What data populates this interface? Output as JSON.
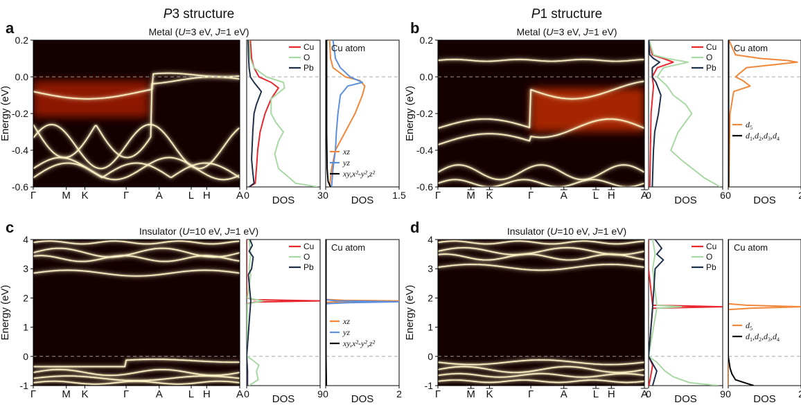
{
  "figure": {
    "panels": [
      {
        "letter": "a",
        "structure_prefix": "P",
        "structure_suffix": "3 structure",
        "condition": "Metal (U=3 eV, J=1 eV)"
      },
      {
        "letter": "b",
        "structure_prefix": "P",
        "structure_suffix": "1 structure",
        "condition": "Metal (U=3 eV, J=1 eV)"
      },
      {
        "letter": "c",
        "structure_prefix": "",
        "structure_suffix": "",
        "condition": "Insulator (U=10 eV, J=1 eV)"
      },
      {
        "letter": "d",
        "structure_prefix": "",
        "structure_suffix": "",
        "condition": "Insulator (U=10 eV, J=1 eV)"
      }
    ],
    "energy_label": "Energy (eV)",
    "dos_label": "DOS",
    "cu_atom_label": "Cu atom"
  },
  "colors": {
    "Cu": "#e8262e",
    "O": "#a8d8a3",
    "Pb": "#1f3049",
    "xz": "#f0873a",
    "yz": "#5b8fdc",
    "rest": "#000000",
    "d5": "#f0873a",
    "d_rest": "#000000",
    "map_bg": "#150000",
    "band": "#fff6c8"
  },
  "chart_data": [
    {
      "type": "heatmap",
      "panel": "a",
      "ylabel": "Energy (eV)",
      "ylim": [
        -0.6,
        0.2
      ],
      "yticks": [
        "0.2",
        "0.0",
        "-0.2",
        "-0.4",
        "-0.6"
      ],
      "kpath": [
        "Γ",
        "M",
        "K",
        "Γ",
        "A",
        "L",
        "H",
        "A"
      ],
      "kpath_overline": [
        false,
        false,
        false,
        false,
        false,
        false,
        false,
        false
      ],
      "fermi_level": 0.0,
      "dos_element": {
        "xlabel": "DOS",
        "xticks": [
          "0",
          "3"
        ],
        "xlim": [
          0,
          3
        ],
        "legend": [
          "Cu",
          "O",
          "Pb"
        ],
        "series": [
          {
            "name": "Cu",
            "energy": [
              -0.6,
              -0.58,
              -0.5,
              -0.4,
              -0.3,
              -0.2,
              -0.12,
              -0.06,
              -0.03,
              0.0,
              0.05,
              0.1,
              0.2
            ],
            "dos": [
              0.1,
              0.35,
              0.4,
              0.45,
              0.55,
              0.75,
              1.0,
              1.3,
              1.0,
              0.5,
              0.3,
              0.2,
              0.15
            ]
          },
          {
            "name": "O",
            "energy": [
              -0.6,
              -0.58,
              -0.5,
              -0.42,
              -0.35,
              -0.3,
              -0.25,
              -0.2,
              -0.12,
              -0.06,
              -0.03,
              0.0,
              0.05,
              0.1,
              0.2
            ],
            "dos": [
              2.9,
              2.0,
              1.3,
              1.15,
              1.3,
              1.5,
              1.2,
              1.0,
              1.0,
              1.55,
              1.5,
              0.8,
              0.3,
              0.15,
              0.1
            ]
          },
          {
            "name": "Pb",
            "energy": [
              -0.6,
              -0.58,
              -0.52,
              -0.45,
              -0.3,
              -0.2,
              -0.15,
              -0.08,
              -0.03,
              0.0,
              0.05,
              0.1,
              0.2
            ],
            "dos": [
              0.1,
              0.3,
              0.25,
              0.2,
              0.25,
              0.3,
              0.4,
              0.6,
              0.3,
              0.15,
              0.1,
              0.08,
              0.06
            ]
          }
        ]
      },
      "dos_orbital": {
        "xlabel": "DOS",
        "xticks": [
          "0",
          "1.5"
        ],
        "xlim": [
          0,
          1.5
        ],
        "title": "Cu atom",
        "legend": [
          "xz",
          "yz",
          "xy,x²-y²,z²"
        ],
        "series": [
          {
            "name": "xz",
            "energy": [
              -0.6,
              -0.5,
              -0.4,
              -0.3,
              -0.2,
              -0.1,
              -0.05,
              -0.02,
              0.0,
              0.05,
              0.1,
              0.2
            ],
            "dos": [
              0.08,
              0.12,
              0.2,
              0.4,
              0.6,
              0.75,
              0.8,
              0.7,
              0.4,
              0.15,
              0.1,
              0.08
            ]
          },
          {
            "name": "yz",
            "energy": [
              -0.6,
              -0.5,
              -0.4,
              -0.3,
              -0.2,
              -0.1,
              -0.05,
              -0.03,
              0.0,
              0.05,
              0.1,
              0.2
            ],
            "dos": [
              0.12,
              0.15,
              0.2,
              0.22,
              0.25,
              0.3,
              0.45,
              0.75,
              0.5,
              0.3,
              0.2,
              0.15
            ]
          },
          {
            "name": "xy,x²-y²,z²",
            "energy": [
              -0.6,
              -0.57,
              -0.5,
              -0.3,
              -0.1,
              0.0,
              0.2
            ],
            "dos": [
              0.1,
              0.05,
              0.03,
              0.02,
              0.02,
              0.02,
              0.02
            ]
          }
        ]
      }
    },
    {
      "type": "heatmap",
      "panel": "b",
      "ylabel": "Energy (eV)",
      "ylim": [
        -0.6,
        0.2
      ],
      "yticks": [
        "0.2",
        "0.0",
        "-0.2",
        "-0.4",
        "-0.6"
      ],
      "kpath": [
        "Γ",
        "M",
        "K",
        "Γ",
        "A",
        "L",
        "H",
        "A"
      ],
      "kpath_overline": [
        false,
        true,
        true,
        false,
        true,
        true,
        true,
        true
      ],
      "fermi_level": 0.0,
      "dos_element": {
        "xlabel": "DOS",
        "xticks": [
          "0",
          "6"
        ],
        "xlim": [
          0,
          6
        ],
        "legend": [
          "Cu",
          "O",
          "Pb"
        ],
        "series": [
          {
            "name": "Cu",
            "energy": [
              -0.6,
              -0.4,
              -0.2,
              -0.05,
              0.0,
              0.05,
              0.08,
              0.1,
              0.12,
              0.2
            ],
            "dos": [
              0.1,
              0.15,
              0.2,
              0.4,
              0.3,
              0.7,
              2.0,
              1.2,
              0.3,
              0.05
            ]
          },
          {
            "name": "O",
            "energy": [
              -0.6,
              -0.55,
              -0.45,
              -0.4,
              -0.3,
              -0.2,
              -0.15,
              -0.1,
              -0.05,
              0.0,
              0.05,
              0.08,
              0.1,
              0.12,
              0.2
            ],
            "dos": [
              5.8,
              4.5,
              2.6,
              1.8,
              2.4,
              3.5,
              3.0,
              2.0,
              1.5,
              0.7,
              1.2,
              3.2,
              1.5,
              0.4,
              0.05
            ]
          },
          {
            "name": "Pb",
            "energy": [
              -0.6,
              -0.4,
              -0.3,
              -0.2,
              -0.1,
              -0.03,
              0.0,
              0.05,
              0.08,
              0.1,
              0.12,
              0.2
            ],
            "dos": [
              0.3,
              0.4,
              0.5,
              0.8,
              1.0,
              0.6,
              0.3,
              0.3,
              0.9,
              0.4,
              0.1,
              0.02
            ]
          }
        ]
      },
      "dos_orbital": {
        "xlabel": "DOS",
        "xticks": [
          "0",
          "2"
        ],
        "xlim": [
          0,
          2
        ],
        "title": "Cu atom",
        "legend": [
          "d5",
          "d1,d2,d3,d4"
        ],
        "series": [
          {
            "name": "d5",
            "energy": [
              -0.6,
              -0.4,
              -0.2,
              -0.08,
              -0.05,
              -0.02,
              0.0,
              0.05,
              0.08,
              0.09,
              0.1,
              0.12,
              0.2
            ],
            "dos": [
              0.02,
              0.03,
              0.05,
              0.15,
              0.6,
              0.4,
              0.2,
              0.5,
              1.9,
              1.6,
              0.9,
              0.2,
              0.02
            ]
          },
          {
            "name": "d1,d2,d3,d4",
            "energy": [
              -0.6,
              -0.3,
              0.0,
              0.2
            ],
            "dos": [
              0.01,
              0.01,
              0.01,
              0.01
            ]
          }
        ]
      }
    },
    {
      "type": "heatmap",
      "panel": "c",
      "ylabel": "Energy (eV)",
      "ylim": [
        -1,
        4
      ],
      "yticks": [
        "4",
        "3",
        "2",
        "1",
        "0",
        "-1"
      ],
      "kpath": [
        "Γ",
        "M",
        "K",
        "Γ",
        "A",
        "L",
        "H",
        "A"
      ],
      "kpath_overline": [
        false,
        false,
        false,
        false,
        false,
        false,
        false,
        false
      ],
      "fermi_level": 0.0,
      "dos_element": {
        "xlabel": "DOS",
        "xticks": [
          "0",
          "9"
        ],
        "xlim": [
          0,
          9
        ],
        "legend": [
          "Cu",
          "O",
          "Pb"
        ],
        "series": [
          {
            "name": "Cu",
            "energy": [
              -1,
              -0.5,
              0,
              1.8,
              1.86,
              1.9,
              1.94,
              2.0,
              3.0,
              4.0
            ],
            "dos": [
              0.05,
              0.1,
              0.0,
              0.0,
              1.0,
              9.0,
              1.0,
              0.0,
              0.0,
              0.0
            ]
          },
          {
            "name": "O",
            "energy": [
              -1,
              -0.8,
              -0.5,
              -0.3,
              -0.1,
              0,
              1.8,
              1.9,
              2.0,
              2.8,
              3.0,
              3.5,
              4.0
            ],
            "dos": [
              0.3,
              1.4,
              1.2,
              1.5,
              0.6,
              0.0,
              0.1,
              2.0,
              0.1,
              0.5,
              0.3,
              0.5,
              0.3
            ]
          },
          {
            "name": "Pb",
            "energy": [
              -1,
              -0.5,
              0,
              1.9,
              2.8,
              3.0,
              3.4,
              3.6,
              3.8,
              4.0
            ],
            "dos": [
              0.1,
              0.1,
              0.0,
              0.5,
              0.2,
              0.6,
              0.8,
              0.3,
              0.7,
              0.4
            ]
          }
        ]
      },
      "dos_orbital": {
        "xlabel": "DOS",
        "xticks": [
          "0",
          "2"
        ],
        "xlim": [
          0,
          2
        ],
        "title": "Cu atom",
        "legend": [
          "xz",
          "yz",
          "xy,x²-y²,z²"
        ],
        "series": [
          {
            "name": "xz",
            "energy": [
              -1,
              1.85,
              1.88,
              1.9,
              1.92,
              1.95,
              4.0
            ],
            "dos": [
              0.0,
              0.0,
              0.5,
              2.0,
              0.5,
              0.0,
              0.0
            ]
          },
          {
            "name": "yz",
            "energy": [
              -1,
              1.8,
              1.84,
              1.87,
              1.9,
              1.94,
              4.0
            ],
            "dos": [
              0.0,
              0.0,
              0.6,
              2.0,
              0.3,
              0.0,
              0.0
            ]
          },
          {
            "name": "xy,x²-y²,z²",
            "energy": [
              -1,
              0,
              4.0
            ],
            "dos": [
              0.02,
              0.01,
              0.01
            ]
          }
        ]
      }
    },
    {
      "type": "heatmap",
      "panel": "d",
      "ylabel": "Energy (eV)",
      "ylim": [
        -1,
        4
      ],
      "yticks": [
        "4",
        "3",
        "2",
        "1",
        "0",
        "-1"
      ],
      "kpath": [
        "Γ",
        "M",
        "K",
        "Γ",
        "A",
        "L",
        "H",
        "A"
      ],
      "kpath_overline": [
        false,
        true,
        true,
        false,
        true,
        true,
        true,
        true
      ],
      "fermi_level": 0.0,
      "dos_element": {
        "xlabel": "DOS",
        "xticks": [
          "0",
          "9"
        ],
        "xlim": [
          0,
          9
        ],
        "legend": [
          "Cu",
          "O",
          "Pb"
        ],
        "series": [
          {
            "name": "Cu",
            "energy": [
              -1,
              -0.3,
              0,
              1.65,
              1.7,
              1.75,
              3.0,
              4.0
            ],
            "dos": [
              0.05,
              0.5,
              0.0,
              0.5,
              9.0,
              0.5,
              0.0,
              0.0
            ]
          },
          {
            "name": "O",
            "energy": [
              -1,
              -0.9,
              -0.7,
              -0.5,
              -0.2,
              0,
              1.65,
              1.7,
              1.75,
              3.0,
              3.5,
              4.0
            ],
            "dos": [
              8.5,
              5.0,
              3.0,
              2.0,
              1.0,
              0.0,
              1.0,
              4.0,
              1.0,
              0.5,
              0.8,
              0.5
            ]
          },
          {
            "name": "Pb",
            "energy": [
              -1,
              -0.5,
              0,
              1.7,
              3.0,
              3.3,
              3.5,
              3.7,
              4.0
            ],
            "dos": [
              0.5,
              1.0,
              0.0,
              0.5,
              0.8,
              1.8,
              1.0,
              1.6,
              0.8
            ]
          }
        ]
      },
      "dos_orbital": {
        "xlabel": "DOS",
        "xticks": [
          "0",
          "2"
        ],
        "xlim": [
          0,
          2
        ],
        "title": "Cu atom",
        "legend": [
          "d5",
          "d1,d2,d3,d4"
        ],
        "series": [
          {
            "name": "d5",
            "energy": [
              -1,
              1.6,
              1.65,
              1.7,
              1.75,
              1.8,
              4.0
            ],
            "dos": [
              0.0,
              0.0,
              0.6,
              2.0,
              0.5,
              0.0,
              0.0
            ]
          },
          {
            "name": "d1,d2,d3,d4",
            "energy": [
              -1,
              -0.9,
              -0.8,
              -0.6,
              -0.4,
              0,
              4.0
            ],
            "dos": [
              0.7,
              0.45,
              0.2,
              0.1,
              0.05,
              0.0,
              0.0
            ]
          }
        ]
      }
    }
  ]
}
